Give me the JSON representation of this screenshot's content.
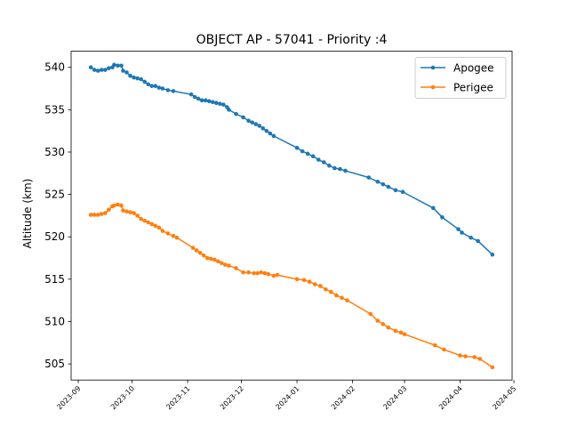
{
  "chart_data": {
    "type": "line",
    "title": "OBJECT AP - 57041 - Priority :4",
    "xlabel": "",
    "ylabel": "Altitude (km)",
    "x_range": [
      "2023-08-28",
      "2024-04-30"
    ],
    "ylim": [
      503.1,
      541.9
    ],
    "y_ticks": [
      505,
      510,
      515,
      520,
      525,
      530,
      535,
      540
    ],
    "x_ticks": [
      "2023-09",
      "2023-10",
      "2023-11",
      "2023-12",
      "2024-01",
      "2024-02",
      "2024-03",
      "2024-04",
      "2024-05"
    ],
    "grid": false,
    "legend": "top-right",
    "series": [
      {
        "name": "Apogee",
        "color": "#1f77b4",
        "points": [
          [
            "2023-09-08",
            540.0
          ],
          [
            "2023-09-10",
            539.7
          ],
          [
            "2023-09-12",
            539.6
          ],
          [
            "2023-09-14",
            539.7
          ],
          [
            "2023-09-16",
            539.7
          ],
          [
            "2023-09-18",
            539.9
          ],
          [
            "2023-09-20",
            540.0
          ],
          [
            "2023-09-21",
            540.3
          ],
          [
            "2023-09-23",
            540.2
          ],
          [
            "2023-09-25",
            540.2
          ],
          [
            "2023-09-26",
            539.6
          ],
          [
            "2023-09-28",
            539.4
          ],
          [
            "2023-09-30",
            539.0
          ],
          [
            "2023-10-02",
            538.8
          ],
          [
            "2023-10-04",
            538.7
          ],
          [
            "2023-10-06",
            538.6
          ],
          [
            "2023-10-08",
            538.3
          ],
          [
            "2023-10-10",
            538.0
          ],
          [
            "2023-10-12",
            537.8
          ],
          [
            "2023-10-14",
            537.8
          ],
          [
            "2023-10-16",
            537.6
          ],
          [
            "2023-10-18",
            537.5
          ],
          [
            "2023-10-21",
            537.3
          ],
          [
            "2023-10-24",
            537.2
          ],
          [
            "2023-11-03",
            536.8
          ],
          [
            "2023-11-05",
            536.5
          ],
          [
            "2023-11-07",
            536.3
          ],
          [
            "2023-11-09",
            536.1
          ],
          [
            "2023-11-11",
            536.1
          ],
          [
            "2023-11-13",
            536.0
          ],
          [
            "2023-11-15",
            535.9
          ],
          [
            "2023-11-17",
            535.8
          ],
          [
            "2023-11-19",
            535.7
          ],
          [
            "2023-11-21",
            535.6
          ],
          [
            "2023-11-23",
            535.3
          ],
          [
            "2023-11-24",
            535.0
          ],
          [
            "2023-11-28",
            534.5
          ],
          [
            "2023-12-02",
            534.1
          ],
          [
            "2023-12-05",
            533.7
          ],
          [
            "2023-12-07",
            533.5
          ],
          [
            "2023-12-09",
            533.3
          ],
          [
            "2023-12-11",
            533.1
          ],
          [
            "2023-12-13",
            532.8
          ],
          [
            "2023-12-15",
            532.5
          ],
          [
            "2023-12-17",
            532.2
          ],
          [
            "2023-12-19",
            531.9
          ],
          [
            "2024-01-01",
            530.5
          ],
          [
            "2024-01-04",
            530.1
          ],
          [
            "2024-01-07",
            529.8
          ],
          [
            "2024-01-10",
            529.5
          ],
          [
            "2024-01-13",
            529.1
          ],
          [
            "2024-01-16",
            528.8
          ],
          [
            "2024-01-19",
            528.4
          ],
          [
            "2024-01-22",
            528.1
          ],
          [
            "2024-01-25",
            528.0
          ],
          [
            "2024-01-28",
            527.8
          ],
          [
            "2024-02-10",
            527.0
          ],
          [
            "2024-02-15",
            526.5
          ],
          [
            "2024-02-18",
            526.2
          ],
          [
            "2024-02-21",
            525.9
          ],
          [
            "2024-02-25",
            525.5
          ],
          [
            "2024-02-29",
            525.3
          ],
          [
            "2024-03-17",
            523.4
          ],
          [
            "2024-03-22",
            522.3
          ],
          [
            "2024-03-31",
            520.9
          ],
          [
            "2024-04-02",
            520.5
          ],
          [
            "2024-04-07",
            519.9
          ],
          [
            "2024-04-11",
            519.5
          ],
          [
            "2024-04-19",
            517.9
          ]
        ]
      },
      {
        "name": "Perigee",
        "color": "#ff7f0e",
        "points": [
          [
            "2023-09-08",
            522.6
          ],
          [
            "2023-09-10",
            522.6
          ],
          [
            "2023-09-12",
            522.6
          ],
          [
            "2023-09-14",
            522.7
          ],
          [
            "2023-09-16",
            522.8
          ],
          [
            "2023-09-18",
            523.2
          ],
          [
            "2023-09-20",
            523.6
          ],
          [
            "2023-09-21",
            523.7
          ],
          [
            "2023-09-23",
            523.8
          ],
          [
            "2023-09-25",
            523.7
          ],
          [
            "2023-09-26",
            523.1
          ],
          [
            "2023-09-28",
            523.0
          ],
          [
            "2023-09-30",
            522.9
          ],
          [
            "2023-10-02",
            522.8
          ],
          [
            "2023-10-04",
            522.5
          ],
          [
            "2023-10-06",
            522.1
          ],
          [
            "2023-10-08",
            521.9
          ],
          [
            "2023-10-10",
            521.7
          ],
          [
            "2023-10-12",
            521.5
          ],
          [
            "2023-10-14",
            521.3
          ],
          [
            "2023-10-16",
            521.1
          ],
          [
            "2023-10-18",
            520.7
          ],
          [
            "2023-10-21",
            520.4
          ],
          [
            "2023-10-24",
            520.1
          ],
          [
            "2023-10-26",
            519.9
          ],
          [
            "2023-11-04",
            518.7
          ],
          [
            "2023-11-06",
            518.4
          ],
          [
            "2023-11-08",
            518.1
          ],
          [
            "2023-11-10",
            517.8
          ],
          [
            "2023-11-12",
            517.5
          ],
          [
            "2023-11-14",
            517.4
          ],
          [
            "2023-11-16",
            517.3
          ],
          [
            "2023-11-18",
            517.1
          ],
          [
            "2023-11-20",
            516.9
          ],
          [
            "2023-11-22",
            516.7
          ],
          [
            "2023-11-24",
            516.6
          ],
          [
            "2023-11-28",
            516.3
          ],
          [
            "2023-12-02",
            515.8
          ],
          [
            "2023-12-05",
            515.8
          ],
          [
            "2023-12-08",
            515.7
          ],
          [
            "2023-12-10",
            515.7
          ],
          [
            "2023-12-12",
            515.8
          ],
          [
            "2023-12-14",
            515.7
          ],
          [
            "2023-12-16",
            515.6
          ],
          [
            "2023-12-19",
            515.4
          ],
          [
            "2023-12-21",
            515.5
          ],
          [
            "2024-01-01",
            515.0
          ],
          [
            "2024-01-05",
            514.9
          ],
          [
            "2024-01-08",
            514.7
          ],
          [
            "2024-01-11",
            514.4
          ],
          [
            "2024-01-14",
            514.2
          ],
          [
            "2024-01-17",
            513.8
          ],
          [
            "2024-01-20",
            513.5
          ],
          [
            "2024-01-23",
            513.1
          ],
          [
            "2024-01-26",
            512.8
          ],
          [
            "2024-01-29",
            512.5
          ],
          [
            "2024-02-11",
            510.9
          ],
          [
            "2024-02-15",
            510.1
          ],
          [
            "2024-02-18",
            509.7
          ],
          [
            "2024-02-21",
            509.3
          ],
          [
            "2024-02-25",
            508.9
          ],
          [
            "2024-02-28",
            508.7
          ],
          [
            "2024-03-01",
            508.5
          ],
          [
            "2024-03-18",
            507.2
          ],
          [
            "2024-03-23",
            506.7
          ],
          [
            "2024-04-01",
            506.0
          ],
          [
            "2024-04-04",
            505.9
          ],
          [
            "2024-04-09",
            505.8
          ],
          [
            "2024-04-12",
            505.6
          ],
          [
            "2024-04-19",
            504.6
          ]
        ]
      }
    ]
  }
}
